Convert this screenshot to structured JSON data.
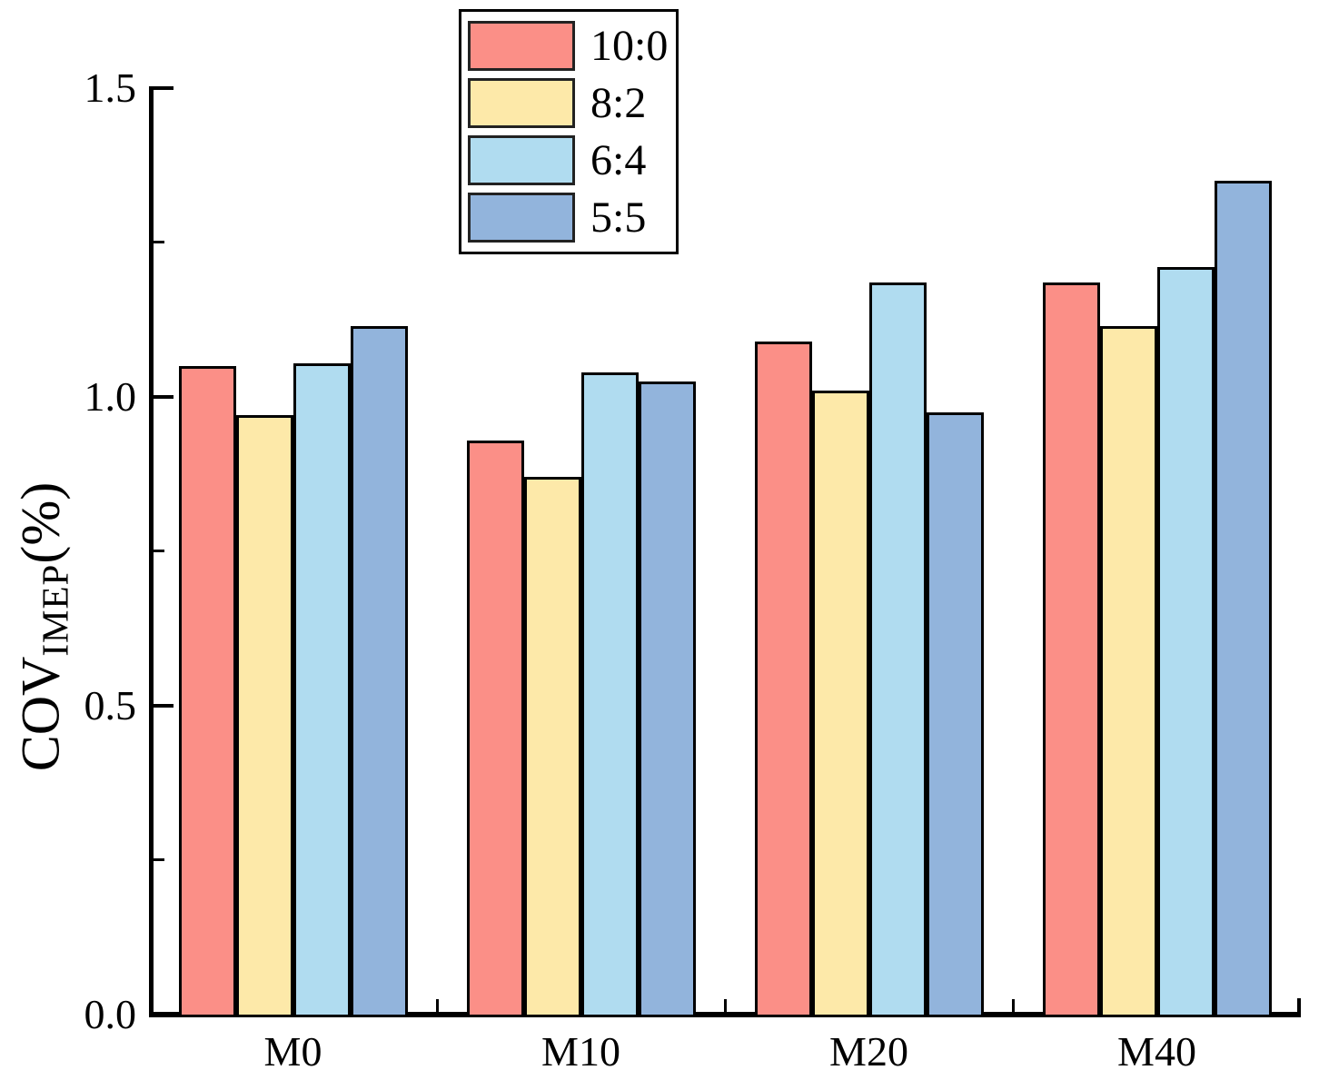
{
  "chart_data": {
    "type": "bar",
    "title": "",
    "xlabel": "",
    "ylabel": {
      "main": "COV",
      "sub": "IMEP",
      "unit": "(%)"
    },
    "categories": [
      "M0",
      "M10",
      "M20",
      "M40"
    ],
    "series": [
      {
        "name": "10:0",
        "color": "#FB8F87",
        "values": [
          1.05,
          0.93,
          1.09,
          1.185
        ]
      },
      {
        "name": "8:2",
        "color": "#FDE9A9",
        "values": [
          0.97,
          0.87,
          1.01,
          1.115
        ]
      },
      {
        "name": "6:4",
        "color": "#B0DCF0",
        "values": [
          1.055,
          1.04,
          1.185,
          1.21
        ]
      },
      {
        "name": "5:5",
        "color": "#92B4DC",
        "values": [
          1.115,
          1.025,
          0.975,
          1.35
        ]
      }
    ],
    "ylim": [
      0.0,
      1.5
    ],
    "yticks_major": [
      0.0,
      0.5,
      1.0,
      1.5
    ],
    "ytick_labels": [
      "0.0",
      "0.5",
      "1.0",
      "1.5"
    ],
    "yticks_minor": [
      0.25,
      0.75,
      1.25
    ],
    "legend_position": "top-center",
    "grid": false,
    "axis_color": "#000000",
    "bar_border_color": "#000000"
  }
}
